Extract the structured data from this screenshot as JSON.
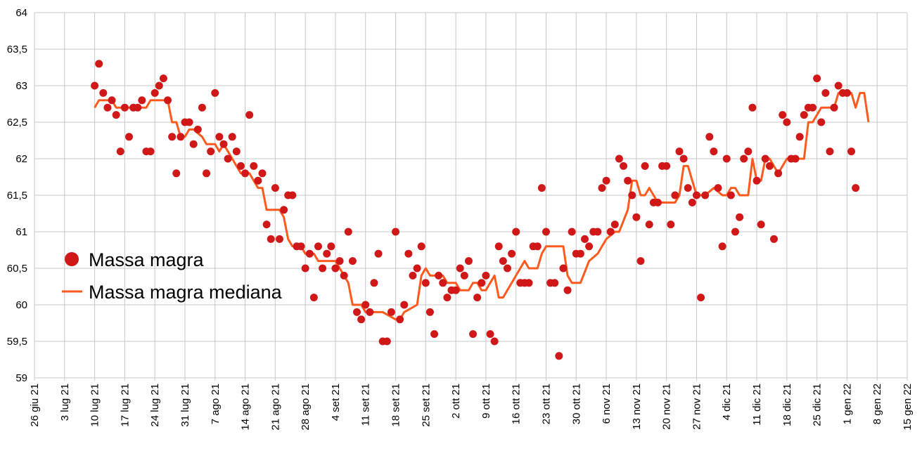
{
  "chart_data": {
    "type": "scatter",
    "title": "",
    "xlabel": "",
    "ylabel": "",
    "x_unit": "days since 26 giu 21",
    "xlim": [
      0,
      203
    ],
    "ylim": [
      59,
      64
    ],
    "grid": true,
    "legend_position": "center-left",
    "y_ticks": [
      "59",
      "59,5",
      "60",
      "60,5",
      "61",
      "61,5",
      "62",
      "62,5",
      "63",
      "63,5",
      "64"
    ],
    "x_ticks": [
      "26 giu 21",
      "3 lug 21",
      "10 lug 21",
      "17 lug 21",
      "24 lug 21",
      "31 lug 21",
      "7 ago 21",
      "14 ago 21",
      "21 ago 21",
      "28 ago 21",
      "4 set 21",
      "11 set 21",
      "18 set 21",
      "25 set 21",
      "2 ott 21",
      "9 ott 21",
      "16 ott 21",
      "23 ott 21",
      "30 ott 21",
      "6 nov 21",
      "13 nov 21",
      "20 nov 21",
      "27 nov 21",
      "4 dic 21",
      "11 dic 21",
      "18 dic 21",
      "25 dic 21",
      "1 gen 22",
      "8 gen 22",
      "15 gen 22"
    ],
    "series": [
      {
        "name": "Massa magra",
        "kind": "scatter",
        "color": "#d01818",
        "x_start": 14,
        "x_step": 1,
        "values": [
          63.0,
          63.3,
          62.9,
          62.7,
          62.8,
          62.6,
          62.1,
          62.7,
          62.3,
          62.7,
          62.7,
          62.8,
          62.1,
          62.1,
          62.9,
          63.0,
          63.1,
          62.8,
          62.3,
          61.8,
          62.3,
          62.5,
          62.5,
          62.2,
          62.4,
          62.7,
          61.8,
          62.1,
          62.9,
          62.3,
          62.2,
          62.0,
          62.3,
          62.1,
          61.9,
          61.8,
          62.6,
          61.9,
          61.7,
          61.8,
          61.1,
          60.9,
          61.6,
          60.9,
          61.3,
          61.5,
          61.5,
          60.8,
          60.8,
          60.5,
          60.7,
          60.1,
          60.8,
          60.5,
          60.7,
          60.8,
          60.5,
          60.6,
          60.4,
          61.0,
          60.6,
          59.9,
          59.8,
          60.0,
          59.9,
          60.3,
          60.7,
          59.5,
          59.5,
          59.9,
          61.0,
          59.8,
          60.0,
          60.7,
          60.4,
          60.5,
          60.8,
          60.3,
          59.9,
          59.6,
          60.4,
          60.3,
          60.1,
          60.2,
          60.2,
          60.5,
          60.4,
          60.6,
          59.6,
          60.1,
          60.3,
          60.4,
          59.6,
          59.5,
          60.8,
          60.6,
          60.5,
          60.7,
          61.0,
          60.3,
          60.3,
          60.3,
          60.8,
          60.8,
          61.6,
          61.0,
          60.3,
          60.3,
          59.3,
          60.5,
          60.2,
          61.0,
          60.7,
          60.7,
          60.9,
          60.8,
          61.0,
          61.0,
          61.6,
          61.7,
          61.0,
          61.1,
          62.0,
          61.9,
          61.7,
          61.5,
          61.2,
          60.6,
          61.9,
          61.1,
          61.4,
          61.4,
          61.9,
          61.9,
          61.1,
          61.5,
          62.1,
          62.0,
          61.6,
          61.4,
          61.5,
          60.1,
          61.5,
          62.3,
          62.1,
          61.6,
          60.8,
          62.0,
          61.5,
          61.0,
          61.2,
          62.0,
          62.1,
          62.7,
          61.7,
          61.1,
          62.0,
          61.9,
          60.9,
          61.8,
          62.6,
          62.5,
          62.0,
          62.0,
          62.3,
          62.6,
          62.7,
          62.7,
          63.1,
          62.5,
          62.9,
          62.1,
          62.7,
          63.0,
          62.9,
          62.9,
          62.1,
          61.6
        ]
      },
      {
        "name": "Massa magra mediana",
        "kind": "line",
        "color": "#ff5a1e",
        "points": [
          [
            14,
            62.7
          ],
          [
            15,
            62.8
          ],
          [
            18,
            62.8
          ],
          [
            19,
            62.7
          ],
          [
            25,
            62.7
          ],
          [
            26,
            62.7
          ],
          [
            27,
            62.8
          ],
          [
            31,
            62.8
          ],
          [
            32,
            62.5
          ],
          [
            33,
            62.5
          ],
          [
            34,
            62.3
          ],
          [
            35,
            62.3
          ],
          [
            36,
            62.4
          ],
          [
            37,
            62.4
          ],
          [
            39,
            62.3
          ],
          [
            40,
            62.2
          ],
          [
            42,
            62.2
          ],
          [
            43,
            62.1
          ],
          [
            44,
            62.2
          ],
          [
            45,
            62.1
          ],
          [
            46,
            62.0
          ],
          [
            47,
            61.9
          ],
          [
            48,
            61.8
          ],
          [
            50,
            61.8
          ],
          [
            52,
            61.6
          ],
          [
            53,
            61.6
          ],
          [
            54,
            61.3
          ],
          [
            56,
            61.3
          ],
          [
            57,
            61.3
          ],
          [
            58,
            61.2
          ],
          [
            59,
            60.9
          ],
          [
            60,
            60.8
          ],
          [
            62,
            60.8
          ],
          [
            63,
            60.7
          ],
          [
            65,
            60.7
          ],
          [
            66,
            60.6
          ],
          [
            68,
            60.6
          ],
          [
            70,
            60.6
          ],
          [
            71,
            60.5
          ],
          [
            73,
            60.3
          ],
          [
            74,
            60.0
          ],
          [
            76,
            60.0
          ],
          [
            77,
            59.9
          ],
          [
            81,
            59.9
          ],
          [
            84,
            59.8
          ],
          [
            85,
            59.8
          ],
          [
            86,
            59.9
          ],
          [
            89,
            60.0
          ],
          [
            90,
            60.4
          ],
          [
            91,
            60.5
          ],
          [
            92,
            60.4
          ],
          [
            95,
            60.4
          ],
          [
            96,
            60.3
          ],
          [
            98,
            60.3
          ],
          [
            99,
            60.2
          ],
          [
            101,
            60.2
          ],
          [
            102,
            60.3
          ],
          [
            103,
            60.3
          ],
          [
            104,
            60.2
          ],
          [
            105,
            60.2
          ],
          [
            107,
            60.4
          ],
          [
            108,
            60.1
          ],
          [
            109,
            60.1
          ],
          [
            111,
            60.3
          ],
          [
            112,
            60.4
          ],
          [
            113,
            60.5
          ],
          [
            114,
            60.6
          ],
          [
            115,
            60.5
          ],
          [
            117,
            60.5
          ],
          [
            118,
            60.7
          ],
          [
            119,
            60.8
          ],
          [
            123,
            60.8
          ],
          [
            124,
            60.4
          ],
          [
            125,
            60.3
          ],
          [
            127,
            60.3
          ],
          [
            129,
            60.6
          ],
          [
            131,
            60.7
          ],
          [
            133,
            60.9
          ],
          [
            135,
            61.0
          ],
          [
            136,
            61.0
          ],
          [
            138,
            61.3
          ],
          [
            139,
            61.7
          ],
          [
            140,
            61.7
          ],
          [
            141,
            61.5
          ],
          [
            142,
            61.5
          ],
          [
            143,
            61.6
          ],
          [
            144,
            61.5
          ],
          [
            145,
            61.4
          ],
          [
            149,
            61.4
          ],
          [
            150,
            61.5
          ],
          [
            151,
            61.9
          ],
          [
            152,
            61.9
          ],
          [
            153,
            61.7
          ],
          [
            154,
            61.5
          ],
          [
            156,
            61.5
          ],
          [
            158,
            61.6
          ],
          [
            160,
            61.5
          ],
          [
            161,
            61.5
          ],
          [
            162,
            61.6
          ],
          [
            163,
            61.6
          ],
          [
            164,
            61.5
          ],
          [
            166,
            61.5
          ],
          [
            167,
            62.0
          ],
          [
            168,
            61.7
          ],
          [
            169,
            61.7
          ],
          [
            170,
            62.0
          ],
          [
            171,
            62.0
          ],
          [
            172,
            61.9
          ],
          [
            173,
            61.8
          ],
          [
            174,
            61.9
          ],
          [
            175,
            62.0
          ],
          [
            178,
            62.0
          ],
          [
            179,
            62.0
          ],
          [
            180,
            62.5
          ],
          [
            181,
            62.5
          ],
          [
            182,
            62.6
          ],
          [
            183,
            62.7
          ],
          [
            186,
            62.7
          ],
          [
            187,
            62.9
          ],
          [
            190,
            62.9
          ],
          [
            191,
            62.7
          ],
          [
            192,
            62.9
          ],
          [
            193,
            62.9
          ],
          [
            194,
            62.5
          ]
        ]
      }
    ]
  }
}
